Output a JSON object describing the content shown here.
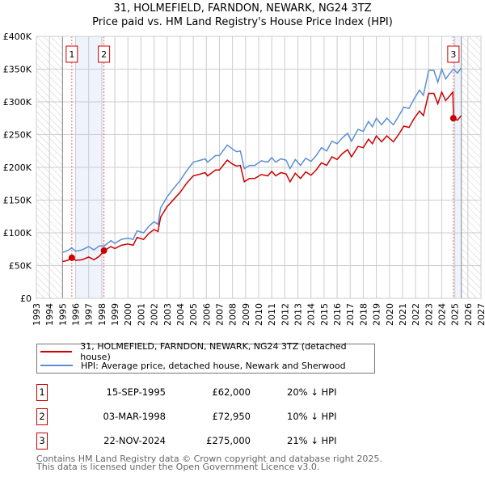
{
  "chart_data": {
    "type": "line",
    "title": "31, HOLMEFIELD, FARNDON, NEWARK, NG24 3TZ",
    "subtitle": "Price paid vs. HM Land Registry's House Price Index (HPI)",
    "xlim": [
      1993,
      2027
    ],
    "ylim": [
      0,
      400000
    ],
    "xticks": [
      "1993",
      "1994",
      "1995",
      "1996",
      "1997",
      "1998",
      "1999",
      "2000",
      "2001",
      "2002",
      "2003",
      "2004",
      "2005",
      "2006",
      "2007",
      "2008",
      "2009",
      "2010",
      "2011",
      "2012",
      "2013",
      "2014",
      "2015",
      "2016",
      "2017",
      "2018",
      "2019",
      "2020",
      "2021",
      "2022",
      "2023",
      "2024",
      "2025",
      "2026",
      "2027"
    ],
    "yticks": [
      {
        "v": 0,
        "l": "£0"
      },
      {
        "v": 50000,
        "l": "£50K"
      },
      {
        "v": 100000,
        "l": "£100K"
      },
      {
        "v": 150000,
        "l": "£150K"
      },
      {
        "v": 200000,
        "l": "£200K"
      },
      {
        "v": 250000,
        "l": "£250K"
      },
      {
        "v": 300000,
        "l": "£300K"
      },
      {
        "v": 350000,
        "l": "£350K"
      },
      {
        "v": 400000,
        "l": "£400K"
      }
    ],
    "grid": true,
    "hatched_ranges": [
      [
        1993,
        1995
      ],
      [
        2025.5,
        2027
      ]
    ],
    "shaded_ranges": [
      [
        1996,
        1998.17
      ],
      [
        2024.9,
        2025.5
      ]
    ],
    "series": [
      {
        "name": "31, HOLMEFIELD, FARNDON, NEWARK, NG24 3TZ (detached house)",
        "color": "#cc0000",
        "points_k": [
          [
            1995,
            56
          ],
          [
            1995.4,
            58
          ],
          [
            1995.7,
            62
          ],
          [
            1996,
            58
          ],
          [
            1996.5,
            59
          ],
          [
            1997,
            63
          ],
          [
            1997.4,
            59
          ],
          [
            1997.8,
            64
          ],
          [
            1998.2,
            73
          ],
          [
            1998.7,
            79
          ],
          [
            1999,
            76
          ],
          [
            1999.5,
            81
          ],
          [
            2000,
            83
          ],
          [
            2000.4,
            81
          ],
          [
            2000.7,
            93
          ],
          [
            2001.2,
            90
          ],
          [
            2001.6,
            99
          ],
          [
            2002,
            105
          ],
          [
            2002.3,
            102
          ],
          [
            2002.5,
            124
          ],
          [
            2003,
            140
          ],
          [
            2003.5,
            151
          ],
          [
            2004,
            162
          ],
          [
            2004.5,
            176
          ],
          [
            2005,
            187
          ],
          [
            2005.4,
            189
          ],
          [
            2005.9,
            192
          ],
          [
            2006.1,
            187
          ],
          [
            2006.7,
            196
          ],
          [
            2007,
            196
          ],
          [
            2007.6,
            211
          ],
          [
            2008,
            205
          ],
          [
            2008.3,
            202
          ],
          [
            2008.6,
            203
          ],
          [
            2008.9,
            178
          ],
          [
            2009.3,
            183
          ],
          [
            2009.7,
            183
          ],
          [
            2010.2,
            189
          ],
          [
            2010.7,
            187
          ],
          [
            2011,
            194
          ],
          [
            2011.3,
            187
          ],
          [
            2011.7,
            192
          ],
          [
            2012.1,
            190
          ],
          [
            2012.4,
            178
          ],
          [
            2012.8,
            191
          ],
          [
            2013.2,
            183
          ],
          [
            2013.6,
            193
          ],
          [
            2014,
            188
          ],
          [
            2014.4,
            196
          ],
          [
            2014.8,
            207
          ],
          [
            2015.2,
            203
          ],
          [
            2015.6,
            216
          ],
          [
            2016,
            212
          ],
          [
            2016.4,
            221
          ],
          [
            2016.8,
            227
          ],
          [
            2017.1,
            216
          ],
          [
            2017.6,
            232
          ],
          [
            2018,
            230
          ],
          [
            2018.4,
            243
          ],
          [
            2018.7,
            236
          ],
          [
            2019,
            248
          ],
          [
            2019.4,
            239
          ],
          [
            2019.8,
            248
          ],
          [
            2020.3,
            239
          ],
          [
            2020.7,
            250
          ],
          [
            2021.1,
            263
          ],
          [
            2021.5,
            261
          ],
          [
            2021.9,
            275
          ],
          [
            2022.3,
            286
          ],
          [
            2022.6,
            279
          ],
          [
            2023,
            313
          ],
          [
            2023.4,
            313
          ],
          [
            2023.7,
            297
          ],
          [
            2024,
            315
          ],
          [
            2024.3,
            302
          ],
          [
            2024.6,
            309
          ],
          [
            2024.85,
            315
          ],
          [
            2024.9,
            275
          ],
          [
            2025.2,
            272
          ],
          [
            2025.5,
            279
          ]
        ]
      },
      {
        "name": "HPI: Average price, detached house, Newark and Sherwood",
        "color": "#5b8fd4",
        "points_k": [
          [
            1995,
            70
          ],
          [
            1995.4,
            73
          ],
          [
            1995.7,
            77
          ],
          [
            1996,
            72
          ],
          [
            1996.5,
            74
          ],
          [
            1997,
            79
          ],
          [
            1997.4,
            74
          ],
          [
            1997.8,
            80
          ],
          [
            1998.2,
            80
          ],
          [
            1998.7,
            88
          ],
          [
            1999,
            84
          ],
          [
            1999.5,
            90
          ],
          [
            2000,
            92
          ],
          [
            2000.4,
            90
          ],
          [
            2000.7,
            103
          ],
          [
            2001.2,
            100
          ],
          [
            2001.6,
            110
          ],
          [
            2002,
            117
          ],
          [
            2002.3,
            113
          ],
          [
            2002.5,
            138
          ],
          [
            2003,
            155
          ],
          [
            2003.5,
            168
          ],
          [
            2004,
            180
          ],
          [
            2004.5,
            195
          ],
          [
            2005,
            208
          ],
          [
            2005.4,
            210
          ],
          [
            2005.9,
            213
          ],
          [
            2006.1,
            208
          ],
          [
            2006.7,
            218
          ],
          [
            2007,
            218
          ],
          [
            2007.6,
            234
          ],
          [
            2008,
            228
          ],
          [
            2008.3,
            224
          ],
          [
            2008.6,
            225
          ],
          [
            2008.9,
            198
          ],
          [
            2009.3,
            203
          ],
          [
            2009.7,
            203
          ],
          [
            2010.2,
            210
          ],
          [
            2010.7,
            208
          ],
          [
            2011,
            215
          ],
          [
            2011.3,
            208
          ],
          [
            2011.7,
            213
          ],
          [
            2012.1,
            211
          ],
          [
            2012.4,
            198
          ],
          [
            2012.8,
            212
          ],
          [
            2013.2,
            203
          ],
          [
            2013.6,
            214
          ],
          [
            2014,
            209
          ],
          [
            2014.4,
            218
          ],
          [
            2014.8,
            230
          ],
          [
            2015.2,
            225
          ],
          [
            2015.6,
            240
          ],
          [
            2016,
            236
          ],
          [
            2016.4,
            245
          ],
          [
            2016.8,
            252
          ],
          [
            2017.1,
            240
          ],
          [
            2017.6,
            258
          ],
          [
            2018,
            255
          ],
          [
            2018.4,
            270
          ],
          [
            2018.7,
            262
          ],
          [
            2019,
            275
          ],
          [
            2019.4,
            265
          ],
          [
            2019.8,
            275
          ],
          [
            2020.3,
            265
          ],
          [
            2020.7,
            278
          ],
          [
            2021.1,
            292
          ],
          [
            2021.5,
            290
          ],
          [
            2021.9,
            305
          ],
          [
            2022.3,
            318
          ],
          [
            2022.6,
            310
          ],
          [
            2023,
            348
          ],
          [
            2023.4,
            348
          ],
          [
            2023.7,
            330
          ],
          [
            2024,
            350
          ],
          [
            2024.3,
            335
          ],
          [
            2024.6,
            343
          ],
          [
            2024.9,
            350
          ],
          [
            2025.2,
            344
          ],
          [
            2025.5,
            352
          ]
        ]
      }
    ],
    "sales": [
      {
        "label": "1",
        "x": 1995.71,
        "price": 62000,
        "date": "15-SEP-1995",
        "price_text": "£62,000",
        "hpi_text": "20% ↓ HPI"
      },
      {
        "label": "2",
        "x": 1998.17,
        "price": 72950,
        "date": "03-MAR-1998",
        "price_text": "£72,950",
        "hpi_text": "10% ↓ HPI"
      },
      {
        "label": "3",
        "x": 2024.89,
        "price": 275000,
        "date": "22-NOV-2024",
        "price_text": "£275,000",
        "hpi_text": "21% ↓ HPI"
      }
    ]
  },
  "footer": {
    "line1": "Contains HM Land Registry data © Crown copyright and database right 2025.",
    "line2": "This data is licensed under the Open Government Licence v3.0."
  }
}
